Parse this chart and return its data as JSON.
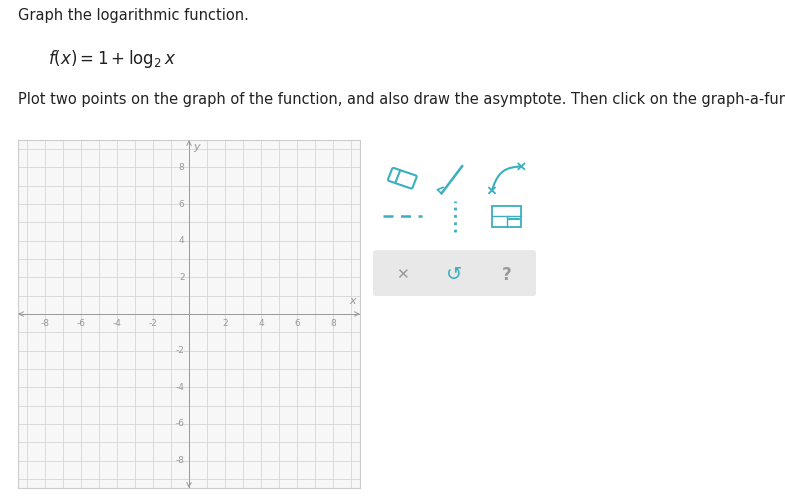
{
  "title_text": "Graph the logarithmic function.",
  "formula_text": "$f(x)=1+\\log_2 x$",
  "instruction_text": "Plot two points on the graph of the function, and also draw the asymptote. Then click on the graph-a-function button.",
  "grid_xlim": [
    -9.5,
    9.5
  ],
  "grid_ylim": [
    -9.5,
    9.5
  ],
  "xticks": [
    -8,
    -6,
    -4,
    -2,
    2,
    4,
    6,
    8
  ],
  "yticks": [
    -8,
    -6,
    -4,
    -2,
    2,
    4,
    6,
    8
  ],
  "grid_color": "#d0d0d0",
  "axis_color": "#999999",
  "tick_label_color": "#999999",
  "background_color": "#f7f7f7",
  "border_color": "#cccccc",
  "tool_teal": "#3aafc0",
  "tool_gray": "#aaaaaa",
  "fig_width": 7.85,
  "fig_height": 5.03
}
